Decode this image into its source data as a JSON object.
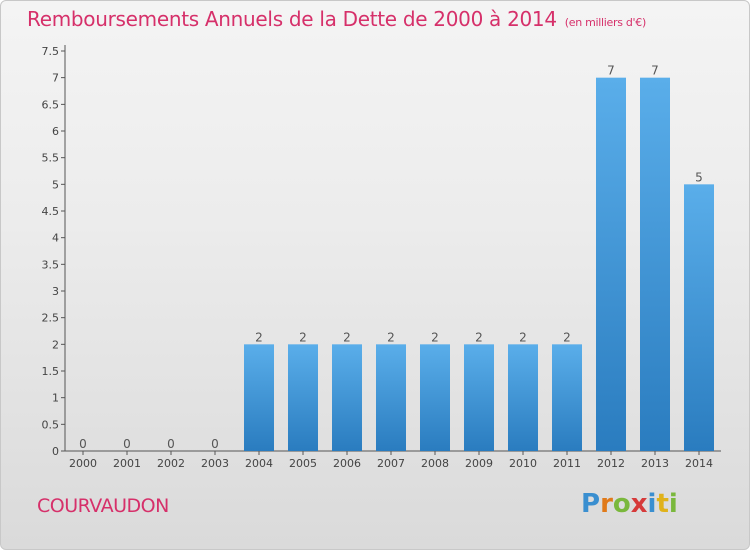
{
  "page": {
    "title": "Remboursements Annuels de la Dette de 2000 à 2014",
    "subtitle": "(en milliers d'€)",
    "commune": "COURVAUDON",
    "logo_text": "Proxiti"
  },
  "chart_data": {
    "type": "bar",
    "title": "Remboursements Annuels de la Dette de 2000 à 2014",
    "subtitle": "(en milliers d'€)",
    "xlabel": "",
    "ylabel": "",
    "categories": [
      "2000",
      "2001",
      "2002",
      "2003",
      "2004",
      "2005",
      "2006",
      "2007",
      "2008",
      "2009",
      "2010",
      "2011",
      "2012",
      "2013",
      "2014"
    ],
    "values": [
      0,
      0,
      0,
      0,
      2,
      2,
      2,
      2,
      2,
      2,
      2,
      2,
      7,
      7,
      5
    ],
    "data_labels": [
      "0",
      "0",
      "0",
      "0",
      "2",
      "2",
      "2",
      "2",
      "2",
      "2",
      "2",
      "2",
      "7",
      "7",
      "5"
    ],
    "ylim": [
      0,
      7.5
    ],
    "yticks": [
      "0",
      "0.5",
      "1",
      "1.5",
      "2",
      "2.5",
      "3",
      "3.5",
      "4",
      "4.5",
      "5",
      "5.5",
      "6",
      "6.5",
      "7",
      "7.5"
    ],
    "grid": false,
    "bar_color": "#3a8fd4"
  }
}
